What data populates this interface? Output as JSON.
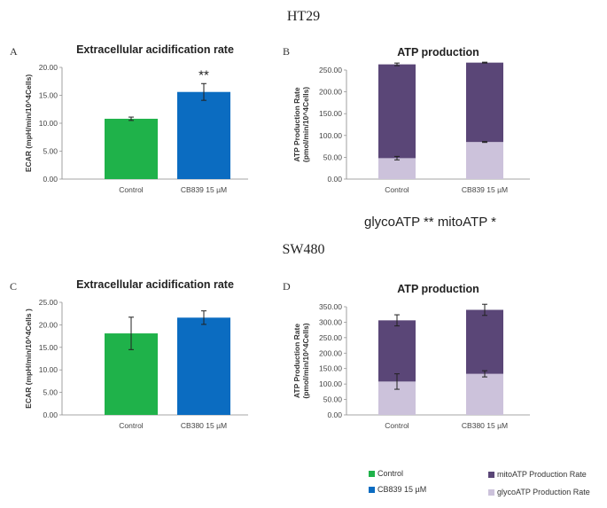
{
  "sections": {
    "top_title": "HT29",
    "bottom_title": "SW480",
    "panel_letters": [
      "A",
      "B",
      "C",
      "D"
    ]
  },
  "annotation": "glycoATP ** mitoATP *",
  "colors": {
    "control": "#1fb24a",
    "treated": "#0b6cc1",
    "mito": "#5a4677",
    "glyco": "#ccc2db"
  },
  "legend": {
    "control": "Control",
    "treated": "CB839 15 µM",
    "mito": "mitoATP Production Rate",
    "glyco": "glycoATP Production Rate"
  },
  "chart_data": [
    {
      "type": "bar",
      "panel": "A",
      "title": "Extracellular acidification rate",
      "ylabel": "ECAR (mpH/min/10^4Cells)",
      "categories": [
        "Control",
        "CB839 15 µM"
      ],
      "values": [
        10.8,
        15.6
      ],
      "errors": [
        0.3,
        1.5
      ],
      "ylim": [
        0,
        20
      ],
      "yticks": [
        "0.00",
        "5.00",
        "10.00",
        "15.00",
        "20.00"
      ],
      "significance": [
        "",
        "**"
      ]
    },
    {
      "type": "stacked_bar",
      "panel": "B",
      "title": "ATP production",
      "ylabel_line1": "ATP Production Rate",
      "ylabel_line2": "(pmol/min/10^4Cells)",
      "categories": [
        "Control",
        "CB839 15 µM"
      ],
      "series": [
        {
          "name": "glycoATP Production Rate",
          "values": [
            48,
            85
          ],
          "errors": [
            4,
            1
          ]
        },
        {
          "name": "mitoATP Production Rate",
          "values": [
            215,
            182
          ],
          "errors": [
            3,
            1
          ]
        }
      ],
      "ylim": [
        0,
        250
      ],
      "yticks": [
        "0.00",
        "50.00",
        "100.00",
        "150.00",
        "200.00",
        "250.00"
      ]
    },
    {
      "type": "bar",
      "panel": "C",
      "title": "Extracellular acidification rate",
      "ylabel": "ECAR (mpH/min/10^4Cells )",
      "categories": [
        "Control",
        "CB380 15 µM"
      ],
      "values": [
        18.1,
        21.6
      ],
      "errors": [
        3.6,
        1.5
      ],
      "ylim": [
        0,
        25
      ],
      "yticks": [
        "0.00",
        "5.00",
        "10.00",
        "15.00",
        "20.00",
        "25.00"
      ],
      "significance": [
        "",
        ""
      ]
    },
    {
      "type": "stacked_bar",
      "panel": "D",
      "title": "ATP production",
      "ylabel_line1": "ATP Production Rate",
      "ylabel_line2": "(pmol/min/10^4Cells)",
      "categories": [
        "Control",
        "CB380 15 µM"
      ],
      "series": [
        {
          "name": "glycoATP Production Rate",
          "values": [
            108,
            133
          ],
          "errors": [
            25,
            10
          ]
        },
        {
          "name": "mitoATP Production Rate",
          "values": [
            198,
            207
          ],
          "errors": [
            18,
            18
          ]
        }
      ],
      "ylim": [
        0,
        350
      ],
      "yticks": [
        "0.00",
        "50.00",
        "100.00",
        "150.00",
        "200.00",
        "250.00",
        "300.00",
        "350.00"
      ]
    }
  ]
}
